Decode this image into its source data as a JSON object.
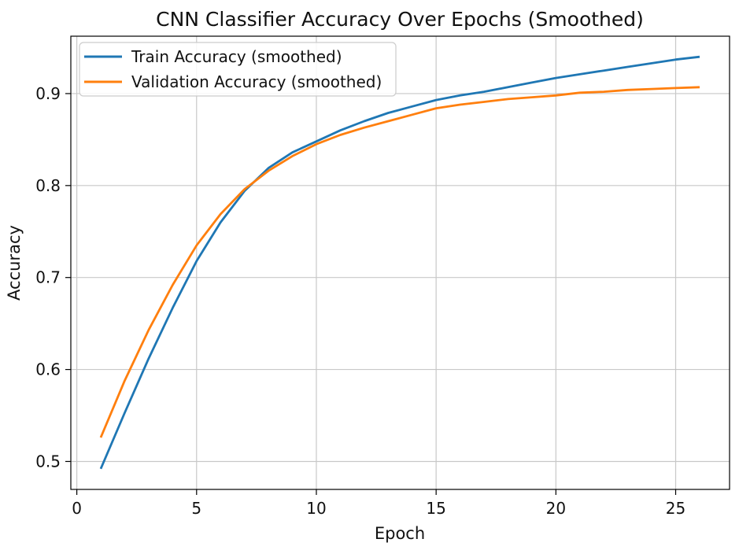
{
  "chart_data": {
    "type": "line",
    "title": "CNN Classifier Accuracy Over Epochs (Smoothed)",
    "xlabel": "Epoch",
    "ylabel": "Accuracy",
    "x": [
      1,
      2,
      3,
      4,
      5,
      6,
      7,
      8,
      9,
      10,
      11,
      12,
      13,
      14,
      15,
      16,
      17,
      18,
      19,
      20,
      21,
      22,
      23,
      24,
      25,
      26
    ],
    "series": [
      {
        "id": "train-accuracy",
        "name": "Train Accuracy (smoothed)",
        "color": "#1f77b4",
        "values": [
          0.492,
          0.553,
          0.612,
          0.667,
          0.718,
          0.76,
          0.794,
          0.819,
          0.836,
          0.848,
          0.86,
          0.87,
          0.879,
          0.886,
          0.893,
          0.898,
          0.902,
          0.907,
          0.912,
          0.917,
          0.921,
          0.925,
          0.929,
          0.933,
          0.937,
          0.94
        ]
      },
      {
        "id": "validation-accuracy",
        "name": "Validation Accuracy (smoothed)",
        "color": "#ff7f0e",
        "values": [
          0.526,
          0.588,
          0.643,
          0.692,
          0.735,
          0.769,
          0.796,
          0.816,
          0.832,
          0.845,
          0.855,
          0.863,
          0.87,
          0.877,
          0.884,
          0.888,
          0.891,
          0.894,
          0.896,
          0.898,
          0.901,
          0.902,
          0.904,
          0.905,
          0.906,
          0.907
        ]
      }
    ],
    "xlim": [
      -0.25,
      27.25
    ],
    "ylim": [
      0.4696,
      0.9624
    ],
    "xticks": {
      "values": [
        0,
        5,
        10,
        15,
        20,
        25
      ],
      "labels": [
        "0",
        "5",
        "10",
        "15",
        "20",
        "25"
      ]
    },
    "yticks": {
      "values": [
        0.5,
        0.6,
        0.7,
        0.8,
        0.9
      ],
      "labels": [
        "0.5",
        "0.6",
        "0.7",
        "0.8",
        "0.9"
      ]
    },
    "grid": true,
    "legend": {
      "position": "upper left"
    },
    "colors": {
      "background": "#ffffff",
      "grid": "#c8c8c8",
      "spine": "#000000",
      "text": "#111111",
      "legend_edge": "#cccccc",
      "legend_fill": "#ffffff"
    }
  }
}
